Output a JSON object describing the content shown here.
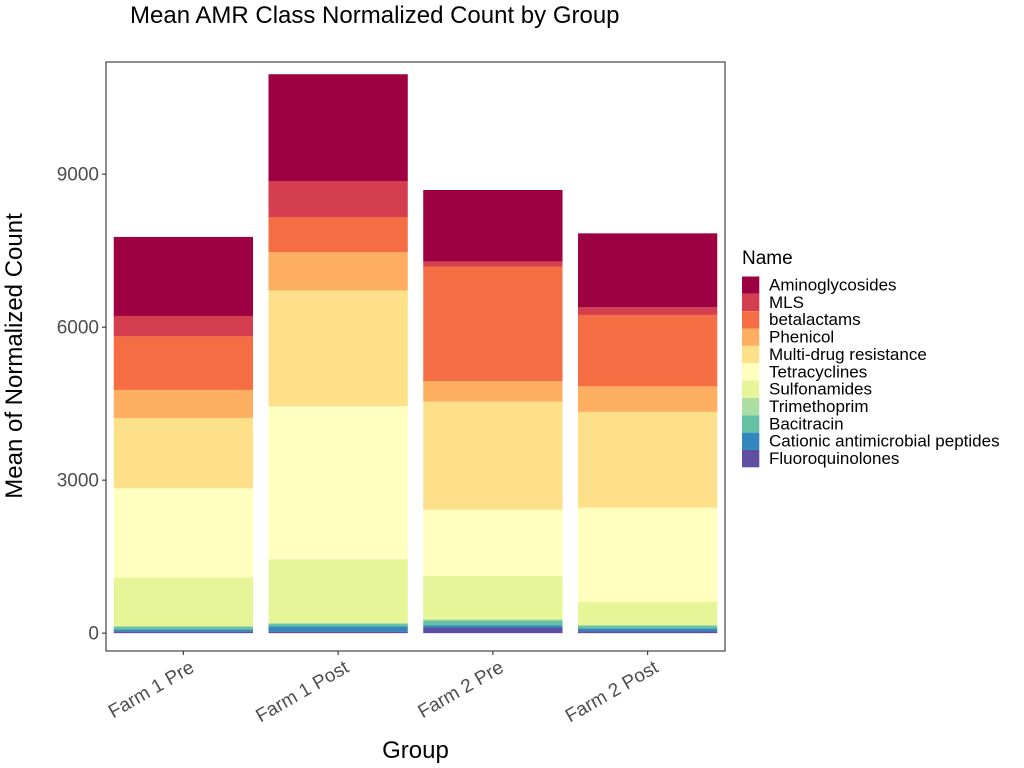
{
  "chart_data": {
    "type": "bar",
    "stacked": true,
    "title": "Mean AMR Class Normalized Count by Group",
    "xlabel": "Group",
    "ylabel": "Mean of Normalized Count",
    "ylim": [
      -350,
      11200
    ],
    "yticks": [
      0,
      3000,
      6000,
      9000
    ],
    "grid": false,
    "legend_title": "Name",
    "legend_position": "right",
    "categories": [
      "Farm 1 Pre",
      "Farm 1 Post",
      "Farm 2 Pre",
      "Farm 2 Post"
    ],
    "series": [
      {
        "name": "Fluoroquinolones",
        "color": "#5E4FA2",
        "values": [
          30,
          30,
          110,
          40
        ]
      },
      {
        "name": "Cationic antimicrobial peptides",
        "color": "#3288BD",
        "values": [
          40,
          100,
          40,
          50
        ]
      },
      {
        "name": "Bacitracin",
        "color": "#66C2A5",
        "values": [
          50,
          50,
          100,
          50
        ]
      },
      {
        "name": "Trimethoprim",
        "color": "#ABDDA4",
        "values": [
          20,
          20,
          20,
          20
        ]
      },
      {
        "name": "Sulfonamides",
        "color": "#E6F598",
        "values": [
          950,
          1250,
          850,
          450
        ]
      },
      {
        "name": "Tetracyclines",
        "color": "#FFFFBF",
        "values": [
          1750,
          3000,
          1300,
          1850
        ]
      },
      {
        "name": "Multi-drug resistance",
        "color": "#FEE08B",
        "values": [
          1380,
          2270,
          2120,
          1880
        ]
      },
      {
        "name": "Phenicol",
        "color": "#FDAE61",
        "values": [
          550,
          750,
          400,
          500
        ]
      },
      {
        "name": "betalactams",
        "color": "#F46D43",
        "values": [
          1050,
          690,
          2250,
          1400
        ]
      },
      {
        "name": "MLS",
        "color": "#D53E4F",
        "values": [
          400,
          700,
          100,
          150
        ]
      },
      {
        "name": "Aminoglycosides",
        "color": "#9E0142",
        "values": [
          1550,
          2100,
          1400,
          1450
        ]
      }
    ],
    "legend_order": [
      "Aminoglycosides",
      "MLS",
      "betalactams",
      "Phenicol",
      "Multi-drug resistance",
      "Tetracyclines",
      "Sulfonamides",
      "Trimethoprim",
      "Bacitracin",
      "Cationic antimicrobial peptides",
      "Fluoroquinolones"
    ]
  }
}
